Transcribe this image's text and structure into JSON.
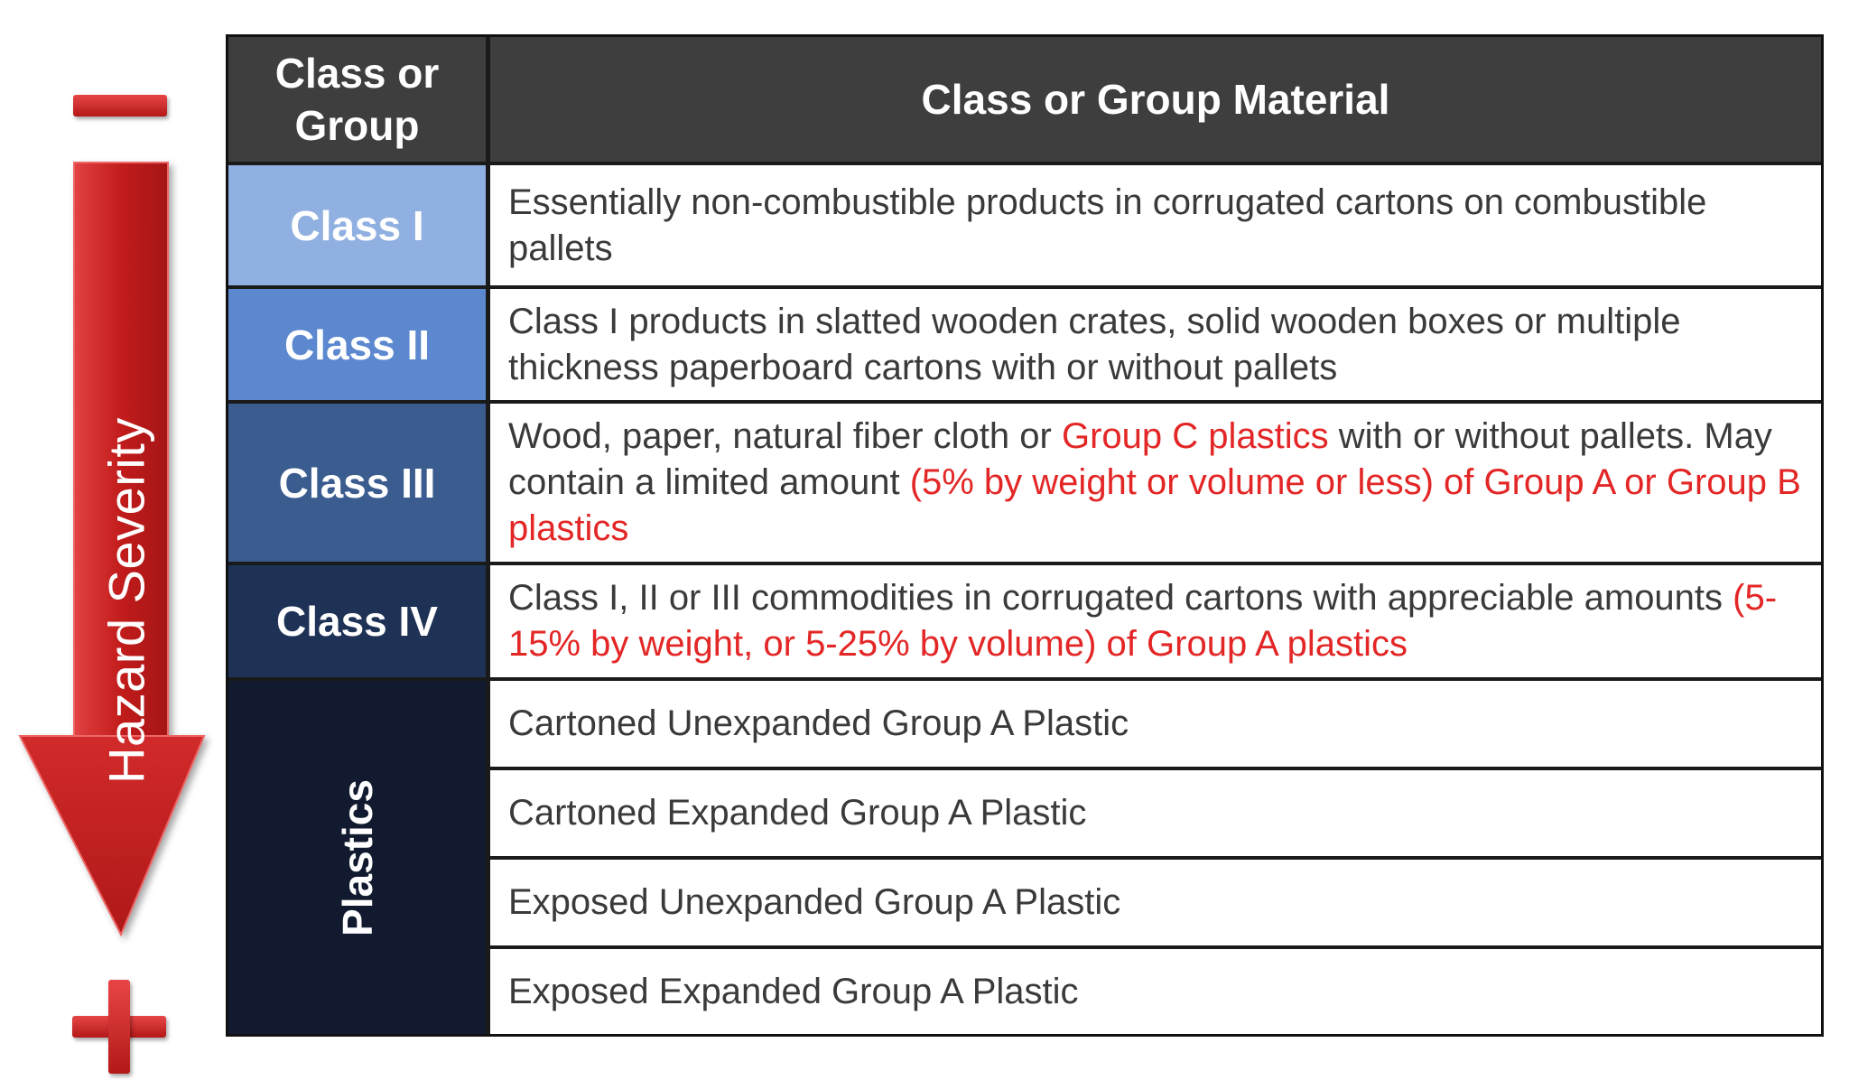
{
  "severity": {
    "label": "Hazard Severity",
    "low_icon": "minus-icon",
    "high_icon": "plus-icon",
    "color": "#c62020"
  },
  "table": {
    "header": {
      "left": "Class or Group",
      "right": "Class or Group Material"
    },
    "rows": [
      {
        "class": "Class I",
        "color": "#8fb0e0",
        "description": [
          {
            "text": "Essentially non-combustible products in corrugated cartons on combustible pallets"
          }
        ]
      },
      {
        "class": "Class II",
        "color": "#5b88cf",
        "description": [
          {
            "text": "Class I products in slatted wooden crates, solid wooden boxes or multiple thickness paperboard cartons with or without pallets"
          }
        ]
      },
      {
        "class": "Class III",
        "color": "#3a5c8f",
        "description": [
          {
            "text": "Wood, paper, natural fiber cloth or "
          },
          {
            "text": "Group C plastics"
          },
          {
            "text": " with or without pallets. May contain a limited amount "
          },
          {
            "text": "(5% by weight or volume or less) of Group A or Group B  plastics"
          }
        ]
      },
      {
        "class": "Class IV",
        "color": "#1e3256",
        "description": [
          {
            "text": "Class I, II or III commodities in corrugated cartons with appreciable amounts "
          },
          {
            "text": "(5-15% by weight, or 5-25% by volume) of Group A plastics"
          }
        ]
      }
    ],
    "plastics": {
      "label": "Plastics",
      "color": "#111a2e",
      "items": [
        "Cartoned Unexpanded Group A Plastic",
        "Cartoned Expanded Group A Plastic",
        "Exposed Unexpanded Group A Plastic",
        "Exposed Expanded Group A Plastic"
      ]
    },
    "highlight_color": "#e32626"
  }
}
